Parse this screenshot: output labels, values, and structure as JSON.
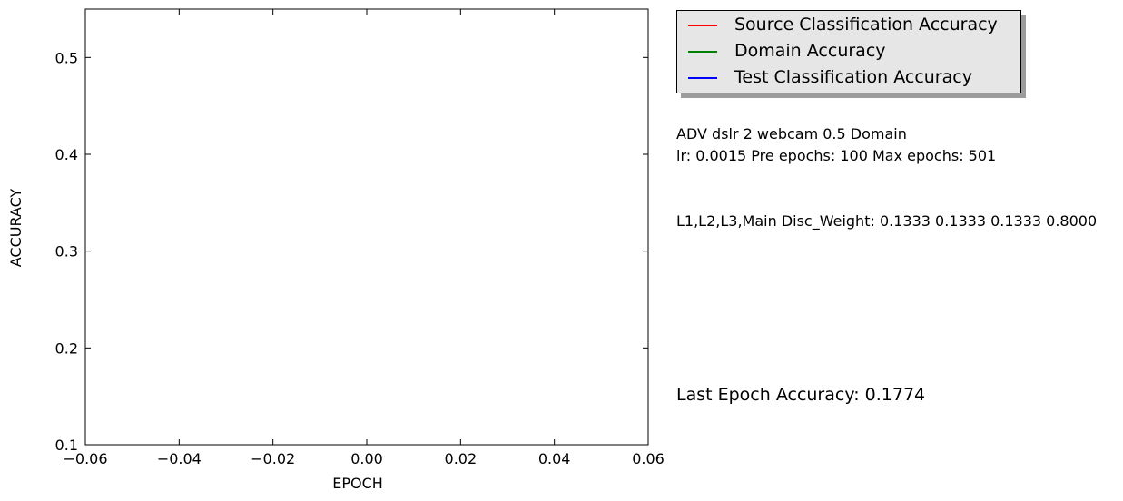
{
  "chart_data": {
    "type": "line",
    "title": "",
    "xlabel": "EPOCH",
    "ylabel": "ACCURACY",
    "xlim": [
      -0.06,
      0.06
    ],
    "ylim": [
      0.1,
      0.55
    ],
    "xticks": [
      -0.06,
      -0.04,
      -0.02,
      0.0,
      0.02,
      0.04,
      0.06
    ],
    "xtick_labels": [
      "−0.06",
      "−0.04",
      "−0.02",
      "0.00",
      "0.02",
      "0.04",
      "0.06"
    ],
    "yticks": [
      0.1,
      0.2,
      0.3,
      0.4,
      0.5
    ],
    "ytick_labels": [
      "0.1",
      "0.2",
      "0.3",
      "0.4",
      "0.5"
    ],
    "grid": false,
    "legend_position": "outside-top-right",
    "series": [
      {
        "name": "Source Classification Accuracy",
        "color": "#ff0000",
        "x": [],
        "values": []
      },
      {
        "name": "Domain Accuracy",
        "color": "#008000",
        "x": [],
        "values": []
      },
      {
        "name": "Test Classification Accuracy",
        "color": "#0000ff",
        "x": [],
        "values": []
      }
    ]
  },
  "info": {
    "line1": "ADV dslr 2 webcam 0.5 Domain",
    "line2": "lr: 0.0015 Pre epochs: 100 Max epochs: 501",
    "line3": "L1,L2,L3,Main Disc_Weight: 0.1333 0.1333 0.1333 0.8000",
    "last_epoch": "Last Epoch Accuracy: 0.1774"
  }
}
